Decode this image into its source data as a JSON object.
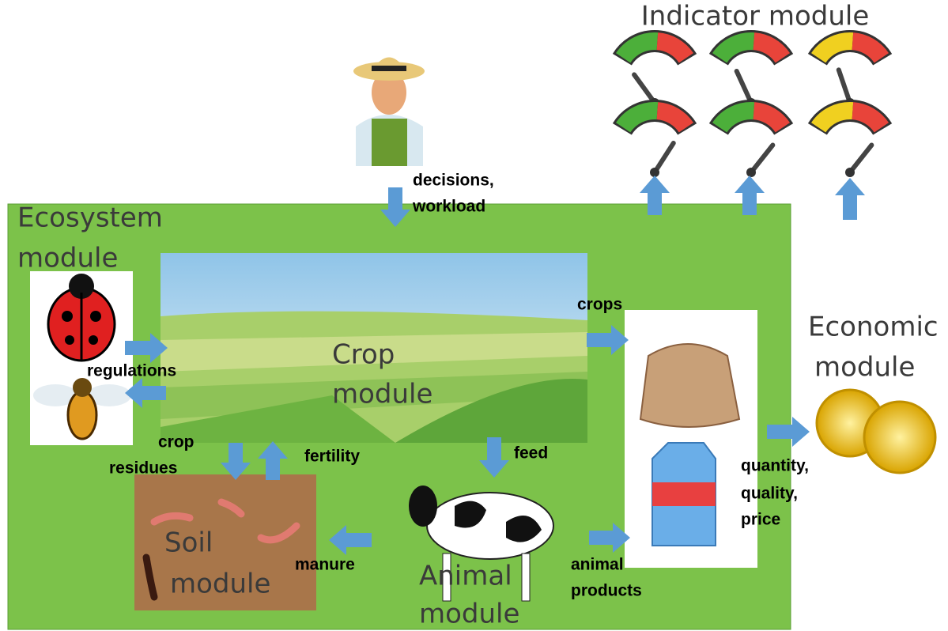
{
  "modules": [
    {
      "lines": [
        "Indicator module"
      ]
    },
    {
      "lines": [
        "Ecosystem",
        "module"
      ]
    },
    {
      "lines": [
        "Crop",
        "module"
      ]
    },
    {
      "lines": [
        "Economic",
        "module"
      ]
    },
    {
      "lines": [
        "Soil",
        "module"
      ]
    },
    {
      "lines": [
        "Animal",
        "module"
      ]
    }
  ],
  "flows": [
    {
      "lines": [
        "decisions,",
        "workload"
      ]
    },
    {
      "lines": [
        "crops"
      ]
    },
    {
      "lines": [
        "regulations"
      ]
    },
    {
      "lines": [
        "crop",
        "residues"
      ]
    },
    {
      "lines": [
        "fertility"
      ]
    },
    {
      "lines": [
        "feed"
      ]
    },
    {
      "lines": [
        "quantity,",
        "quality,",
        "price"
      ]
    },
    {
      "lines": [
        "manure"
      ]
    },
    {
      "lines": [
        "animal",
        "products"
      ]
    }
  ]
}
